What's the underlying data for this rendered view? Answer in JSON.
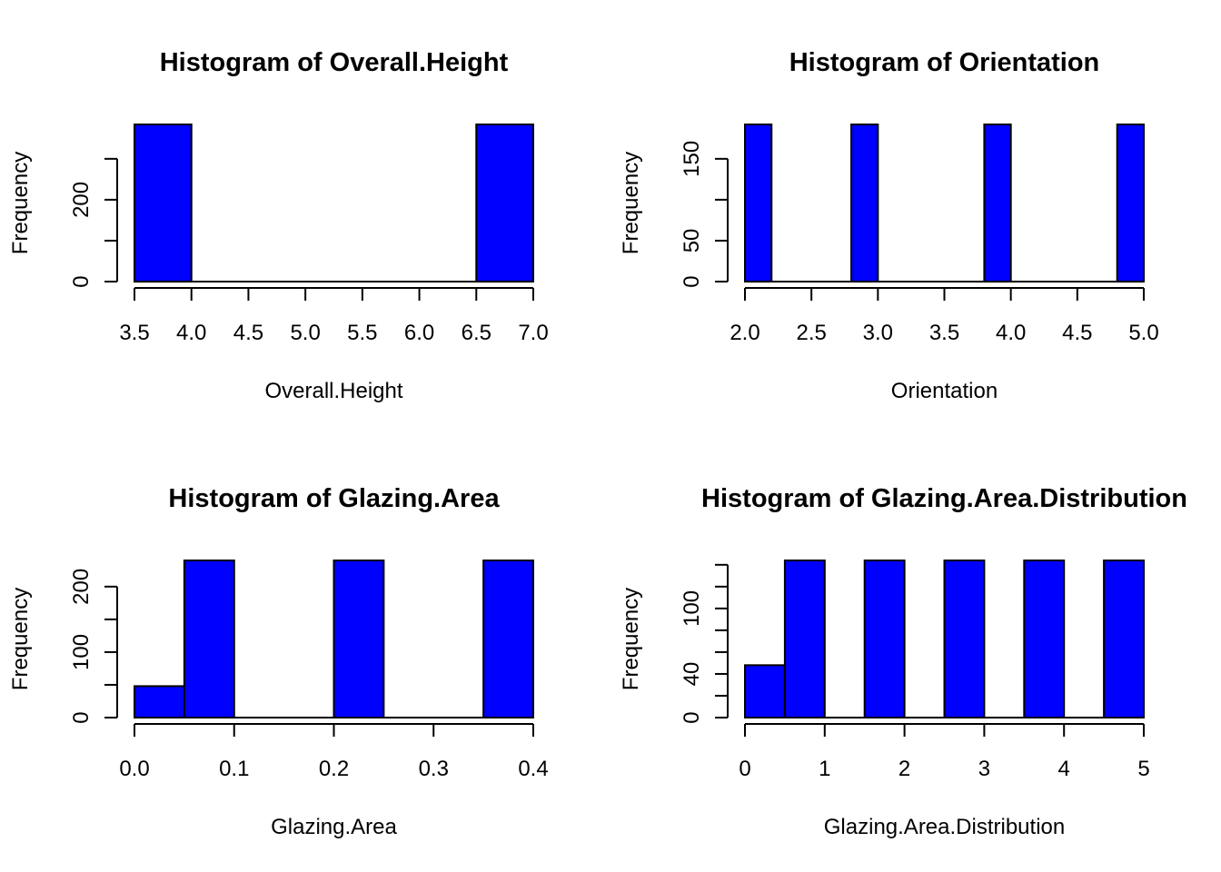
{
  "chart_data": [
    {
      "type": "bar",
      "title": "Histogram of Overall.Height",
      "xlabel": "Overall.Height",
      "ylabel": "Frequency",
      "bins": [
        [
          3.5,
          4.0
        ],
        [
          4.0,
          4.5
        ],
        [
          4.5,
          5.0
        ],
        [
          5.0,
          5.5
        ],
        [
          5.5,
          6.0
        ],
        [
          6.0,
          6.5
        ],
        [
          6.5,
          7.0
        ]
      ],
      "values": [
        384,
        0,
        0,
        0,
        0,
        0,
        384
      ],
      "xlim": [
        3.5,
        7.0
      ],
      "ylim": [
        0,
        384
      ],
      "x_ticks": [
        "3.5",
        "4.0",
        "4.5",
        "5.0",
        "5.5",
        "6.0",
        "6.5",
        "7.0"
      ],
      "x_tick_values": [
        3.5,
        4.0,
        4.5,
        5.0,
        5.5,
        6.0,
        6.5,
        7.0
      ],
      "y_ticks": [
        0,
        100,
        200,
        300
      ],
      "y_tick_labels": [
        "0",
        "",
        "200",
        ""
      ]
    },
    {
      "type": "bar",
      "title": "Histogram of Orientation",
      "xlabel": "Orientation",
      "ylabel": "Frequency",
      "bins": [
        [
          2.0,
          2.2
        ],
        [
          2.8,
          3.0
        ],
        [
          3.8,
          4.0
        ],
        [
          4.8,
          5.0
        ]
      ],
      "values": [
        192,
        192,
        192,
        192
      ],
      "xlim": [
        2.0,
        5.0
      ],
      "ylim": [
        0,
        192
      ],
      "x_ticks": [
        "2.0",
        "2.5",
        "3.0",
        "3.5",
        "4.0",
        "4.5",
        "5.0"
      ],
      "x_tick_values": [
        2.0,
        2.5,
        3.0,
        3.5,
        4.0,
        4.5,
        5.0
      ],
      "y_ticks": [
        0,
        50,
        100,
        150
      ],
      "y_tick_labels": [
        "0",
        "50",
        "",
        "150"
      ]
    },
    {
      "type": "bar",
      "title": "Histogram of Glazing.Area",
      "xlabel": "Glazing.Area",
      "ylabel": "Frequency",
      "bins": [
        [
          0.0,
          0.05
        ],
        [
          0.05,
          0.1
        ],
        [
          0.1,
          0.15
        ],
        [
          0.15,
          0.2
        ],
        [
          0.2,
          0.25
        ],
        [
          0.25,
          0.3
        ],
        [
          0.3,
          0.35
        ],
        [
          0.35,
          0.4
        ]
      ],
      "values": [
        48,
        240,
        0,
        0,
        240,
        0,
        0,
        240
      ],
      "xlim": [
        0.0,
        0.4
      ],
      "ylim": [
        0,
        240
      ],
      "x_ticks": [
        "0.0",
        "0.1",
        "0.2",
        "0.3",
        "0.4"
      ],
      "x_tick_values": [
        0.0,
        0.1,
        0.2,
        0.3,
        0.4
      ],
      "y_ticks": [
        0,
        50,
        100,
        150,
        200
      ],
      "y_tick_labels": [
        "0",
        "",
        "100",
        "",
        "200"
      ]
    },
    {
      "type": "bar",
      "title": "Histogram of Glazing.Area.Distribution",
      "xlabel": "Glazing.Area.Distribution",
      "ylabel": "Frequency",
      "bins": [
        [
          0.0,
          0.5
        ],
        [
          0.5,
          1.0
        ],
        [
          1.5,
          2.0
        ],
        [
          2.5,
          3.0
        ],
        [
          3.5,
          4.0
        ],
        [
          4.5,
          5.0
        ]
      ],
      "values": [
        48,
        144,
        144,
        144,
        144,
        144
      ],
      "xlim": [
        0,
        5
      ],
      "ylim": [
        0,
        144
      ],
      "x_ticks": [
        "0",
        "1",
        "2",
        "3",
        "4",
        "5"
      ],
      "x_tick_values": [
        0,
        1,
        2,
        3,
        4,
        5
      ],
      "y_ticks": [
        0,
        20,
        40,
        60,
        80,
        100,
        120,
        140
      ],
      "y_tick_labels": [
        "0",
        "",
        "40",
        "",
        "",
        "100",
        "",
        ""
      ]
    }
  ],
  "colors": {
    "bar_fill": "#0000ff",
    "bar_stroke": "#000000"
  }
}
